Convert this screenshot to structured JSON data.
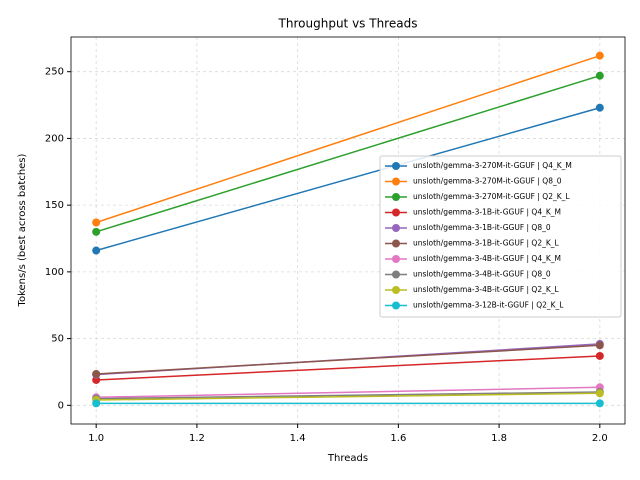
{
  "chart_data": {
    "type": "line",
    "title": "Throughput vs Threads",
    "x_label": "Threads",
    "y_label": "Tokens/s (best across batches)",
    "x": [
      1.0,
      2.0
    ],
    "xlim": [
      0.95,
      2.05
    ],
    "xticks": [
      {
        "value": 1.0,
        "label": "1.0"
      },
      {
        "value": 1.2,
        "label": "1.2"
      },
      {
        "value": 1.4,
        "label": "1.4"
      },
      {
        "value": 1.6,
        "label": "1.6"
      },
      {
        "value": 1.8,
        "label": "1.8"
      },
      {
        "value": 2.0,
        "label": "2.0"
      }
    ],
    "ylim": [
      -14,
      276
    ],
    "yticks": [
      0,
      50,
      100,
      150,
      200,
      250
    ],
    "grid": true,
    "legend": "center right",
    "series": [
      {
        "name": "unsloth/gemma-3-270M-it-GGUF | Q4_K_M",
        "color": "#1f77b4",
        "values": [
          116,
          223
        ]
      },
      {
        "name": "unsloth/gemma-3-270M-it-GGUF | Q8_0",
        "color": "#ff7f0e",
        "values": [
          137,
          262
        ]
      },
      {
        "name": "unsloth/gemma-3-270M-it-GGUF | Q2_K_L",
        "color": "#2ca02c",
        "values": [
          130,
          247
        ]
      },
      {
        "name": "unsloth/gemma-3-1B-it-GGUF | Q4_K_M",
        "color": "#d62728",
        "values": [
          19,
          37
        ]
      },
      {
        "name": "unsloth/gemma-3-1B-it-GGUF | Q8_0",
        "color": "#9467bd",
        "values": [
          23,
          46
        ]
      },
      {
        "name": "unsloth/gemma-3-1B-it-GGUF | Q2_K_L",
        "color": "#8c564b",
        "values": [
          23.5,
          45
        ]
      },
      {
        "name": "unsloth/gemma-3-4B-it-GGUF | Q4_K_M",
        "color": "#e377c2",
        "values": [
          6,
          13.5
        ]
      },
      {
        "name": "unsloth/gemma-3-4B-it-GGUF | Q8_0",
        "color": "#7f7f7f",
        "values": [
          5,
          10
        ]
      },
      {
        "name": "unsloth/gemma-3-4B-it-GGUF | Q2_K_L",
        "color": "#bcbd22",
        "values": [
          4,
          9
        ]
      },
      {
        "name": "unsloth/gemma-3-12B-it-GGUF | Q2_K_L",
        "color": "#17becf",
        "values": [
          1.5,
          1.5
        ]
      }
    ]
  }
}
